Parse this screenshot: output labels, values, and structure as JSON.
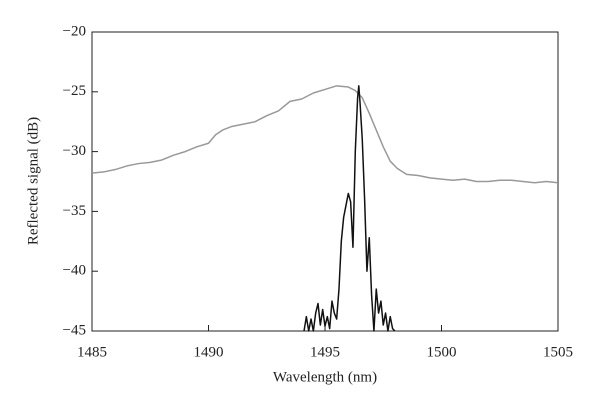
{
  "chart_data": {
    "type": "line",
    "x_label": "Wavelength (nm)",
    "y_label": "Reflected signal (dB)",
    "xlim": [
      1485,
      1505
    ],
    "xticks": [
      1485,
      1490,
      1495,
      1500,
      1505
    ],
    "ylim": [
      -45,
      -20
    ],
    "yticks": [
      {
        "value": -45,
        "label": "−45"
      },
      {
        "value": -40,
        "label": "−40"
      },
      {
        "value": -35,
        "label": "−35"
      },
      {
        "value": -30,
        "label": "−30"
      },
      {
        "value": -25,
        "label": "−25"
      },
      {
        "value": -20,
        "label": "−20"
      }
    ],
    "grid": false,
    "series": [
      {
        "color": "#999999",
        "x": [
          1485,
          1485.5,
          1486,
          1486.5,
          1487,
          1487.5,
          1488,
          1488.5,
          1489,
          1489.5,
          1490,
          1490.3,
          1490.6,
          1491,
          1491.5,
          1492,
          1492.5,
          1493,
          1493.5,
          1494,
          1494.5,
          1495,
          1495.5,
          1496,
          1496.3,
          1496.6,
          1496.9,
          1497.2,
          1497.5,
          1497.8,
          1498.1,
          1498.5,
          1499,
          1499.5,
          1500,
          1500.5,
          1501,
          1501.5,
          1502,
          1502.5,
          1503,
          1503.5,
          1504,
          1504.5,
          1505
        ],
        "values": [
          -31.8,
          -31.7,
          -31.5,
          -31.2,
          -31.0,
          -30.9,
          -30.7,
          -30.3,
          -30.0,
          -29.6,
          -29.3,
          -28.6,
          -28.2,
          -27.9,
          -27.7,
          -27.5,
          -27.0,
          -26.6,
          -25.8,
          -25.6,
          -25.1,
          -24.8,
          -24.5,
          -24.6,
          -24.9,
          -25.5,
          -26.8,
          -28.2,
          -29.6,
          -30.8,
          -31.4,
          -31.9,
          -32.0,
          -32.2,
          -32.3,
          -32.4,
          -32.3,
          -32.5,
          -32.5,
          -32.4,
          -32.4,
          -32.5,
          -32.6,
          -32.5,
          -32.6
        ]
      },
      {
        "color": "#111111",
        "x": [
          1494.1,
          1494.2,
          1494.3,
          1494.4,
          1494.5,
          1494.6,
          1494.7,
          1494.8,
          1494.9,
          1495.0,
          1495.1,
          1495.2,
          1495.3,
          1495.4,
          1495.5,
          1495.6,
          1495.7,
          1495.8,
          1495.9,
          1496.0,
          1496.1,
          1496.2,
          1496.3,
          1496.4,
          1496.45,
          1496.5,
          1496.6,
          1496.7,
          1496.8,
          1496.9,
          1497.0,
          1497.1,
          1497.2,
          1497.3,
          1497.4,
          1497.5,
          1497.6,
          1497.7,
          1497.8,
          1497.9,
          1498.0
        ],
        "values": [
          -45,
          -43.8,
          -45,
          -44,
          -45,
          -43.5,
          -42.7,
          -44.5,
          -43.2,
          -44.6,
          -43.8,
          -44.8,
          -42.5,
          -43.5,
          -44,
          -41.5,
          -37.5,
          -35.5,
          -34.5,
          -33.5,
          -34.2,
          -38,
          -30,
          -25.5,
          -24.5,
          -25.8,
          -29,
          -34,
          -40,
          -37.2,
          -42,
          -45,
          -41.5,
          -43.5,
          -42.5,
          -44.5,
          -43.5,
          -45,
          -43.8,
          -44.8,
          -45
        ]
      }
    ]
  }
}
